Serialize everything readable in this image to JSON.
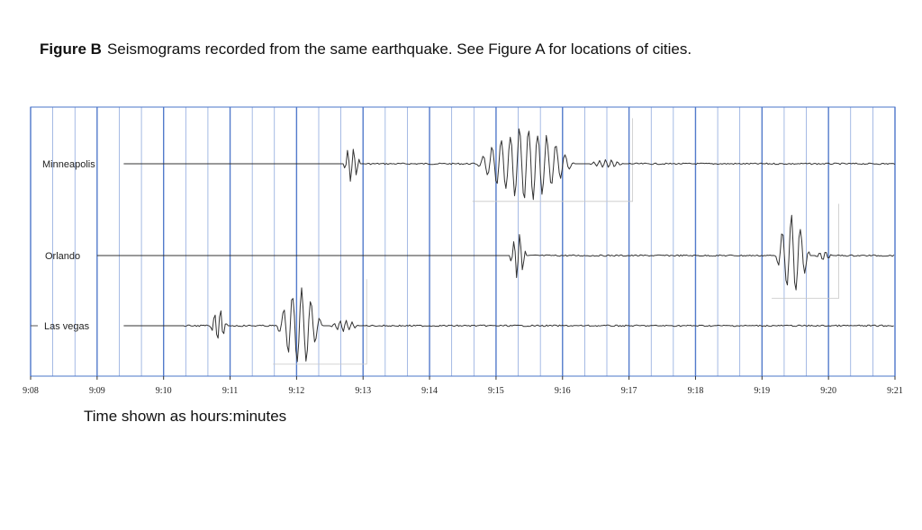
{
  "caption": {
    "label": "Figure B",
    "text": "Seismograms recorded from the same earthquake. See Figure A for locations of cities."
  },
  "footer": "Time shown as  hours:minutes",
  "chart_data": {
    "type": "line",
    "x_ticks": [
      "9:08",
      "9:09",
      "9:10",
      "9:11",
      "9:12",
      "9:13",
      "9:14",
      "9:15",
      "9:16",
      "9:17",
      "9:18",
      "9:19",
      "9:20",
      "9:21"
    ],
    "xlim": [
      "9:08",
      "9:21"
    ],
    "minor_grid_per_minute": 3,
    "grid": true,
    "grid_color": "#4a74c9",
    "trace_color": "#333333",
    "series": [
      {
        "name": "Minneapolis",
        "trace_start": "9:09.4",
        "events": [
          {
            "start": "9:12.7",
            "end": "9:13.0",
            "amplitude": 0.5
          },
          {
            "start": "9:14.7",
            "end": "9:16.4",
            "amplitude": 1.0
          },
          {
            "start": "9:16.4",
            "end": "9:17.0",
            "amplitude": 0.12
          }
        ]
      },
      {
        "name": "Orlando",
        "trace_start": "9:09.0",
        "events": [
          {
            "start": "9:15.2",
            "end": "9:15.5",
            "amplitude": 0.55
          },
          {
            "start": "9:19.2",
            "end": "9:19.8",
            "amplitude": 1.0
          },
          {
            "start": "9:19.8",
            "end": "9:20.1",
            "amplitude": 0.12
          }
        ]
      },
      {
        "name": "Las vegas",
        "trace_start": "9:09.4",
        "events": [
          {
            "start": "9:10.7",
            "end": "9:11.0",
            "amplitude": 0.45
          },
          {
            "start": "9:11.7",
            "end": "9:12.5",
            "amplitude": 1.0
          },
          {
            "start": "9:12.5",
            "end": "9:13.0",
            "amplitude": 0.15
          }
        ]
      }
    ]
  }
}
